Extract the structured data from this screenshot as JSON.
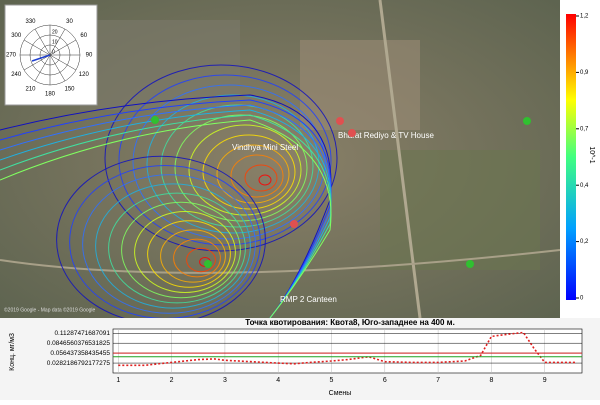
{
  "compass": {
    "angle_labels": [
      "330",
      "30",
      "300",
      "60",
      "270",
      "90",
      "240",
      "120",
      "210",
      "150",
      "180"
    ],
    "radius_labels": [
      "0",
      "10",
      "20"
    ]
  },
  "map": {
    "places": [
      "Bharat Rediyo & TV House",
      "Vindhya Mini Steel",
      "RMP 2 Canteen"
    ],
    "attribution": "©2019 Google - Map data ©2019 Google"
  },
  "colorbar": {
    "tick_labels": [
      "1,2",
      "0,9",
      "0,7",
      "0,4",
      "0,2",
      "0"
    ],
    "unit": "10^-1"
  },
  "chart_data": {
    "type": "line",
    "title": "Точка квотирования: Квота8, Юго-западнее на 400 м.",
    "x_label": "Смены",
    "y_label": "Конц. мг/м3",
    "xlim": [
      0.9,
      9.7
    ],
    "xticks": [
      1,
      2,
      3,
      4,
      5,
      6,
      7,
      8,
      9
    ],
    "ylim": [
      0,
      0.125
    ],
    "yticks": [
      0.11287471687091,
      0.0846560376531825,
      0.056437358435455,
      0.0282186792177275
    ],
    "grid": true,
    "series": [
      {
        "color": "#e02020",
        "style": "dotted",
        "x": [
          1,
          1.5,
          2,
          2.5,
          2.8,
          3,
          3.5,
          4,
          4.3,
          4.6,
          5,
          5.3,
          5.7,
          6,
          6.5,
          7,
          7.5,
          7.8,
          8,
          8.3,
          8.6,
          8.8,
          9,
          9.3,
          9.6
        ],
        "values": [
          0.022,
          0.022,
          0.03,
          0.038,
          0.04,
          0.036,
          0.032,
          0.028,
          0.026,
          0.03,
          0.034,
          0.038,
          0.046,
          0.032,
          0.03,
          0.03,
          0.034,
          0.05,
          0.104,
          0.11,
          0.115,
          0.07,
          0.03,
          0.03,
          0.03
        ]
      },
      {
        "color": "#d02020",
        "style": "solid",
        "x": [
          0.9,
          9.7
        ],
        "values": [
          0.0564,
          0.0564
        ]
      },
      {
        "color": "#20a020",
        "style": "solid",
        "x": [
          0.9,
          9.7
        ],
        "values": [
          0.046,
          0.046
        ]
      }
    ]
  }
}
